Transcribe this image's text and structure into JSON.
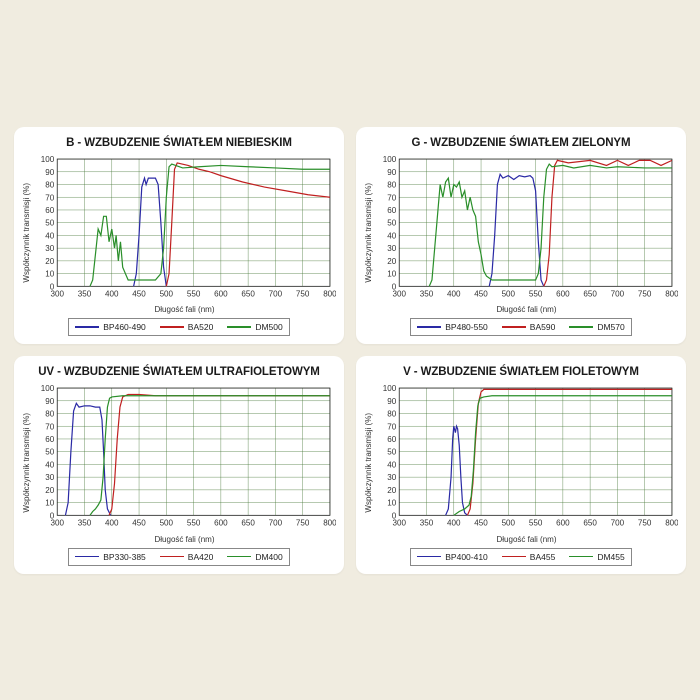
{
  "global": {
    "xlabel": "Długość fali (nm)",
    "ylabel": "Współczynnik transmisji (%)",
    "xlim": [
      300,
      800
    ],
    "xtick_step": 50,
    "ylim": [
      0,
      100
    ],
    "ytick_step": 10,
    "bg_color": "#f0ece0",
    "panel_bg": "#ffffff",
    "grid_color": "#4a7a3a",
    "grid_width": 0.4,
    "axis_color": "#222222",
    "title_fontsize": 11.5,
    "label_fontsize": 8,
    "tick_fontsize": 8,
    "legend_fontsize": 8.5,
    "line_width": 1.2,
    "series_colors": {
      "bp": "#2a2aa5",
      "ba": "#c02020",
      "dm": "#2a8f2a"
    }
  },
  "panels": [
    {
      "id": "B",
      "title": "B - WZBUDZENIE ŚWIATŁEM NIEBIESKIM",
      "series": [
        {
          "name": "BP460-490",
          "color_key": "bp",
          "points": [
            [
              440,
              0
            ],
            [
              445,
              10
            ],
            [
              450,
              40
            ],
            [
              455,
              78
            ],
            [
              460,
              85
            ],
            [
              463,
              80
            ],
            [
              467,
              85
            ],
            [
              475,
              85
            ],
            [
              480,
              85
            ],
            [
              485,
              80
            ],
            [
              490,
              50
            ],
            [
              495,
              15
            ],
            [
              500,
              0
            ]
          ]
        },
        {
          "name": "BA520",
          "color_key": "ba",
          "points": [
            [
              500,
              0
            ],
            [
              505,
              10
            ],
            [
              510,
              50
            ],
            [
              515,
              92
            ],
            [
              520,
              97
            ],
            [
              540,
              95
            ],
            [
              560,
              92
            ],
            [
              580,
              90
            ],
            [
              600,
              87
            ],
            [
              640,
              82
            ],
            [
              680,
              78
            ],
            [
              720,
              75
            ],
            [
              760,
              72
            ],
            [
              800,
              70
            ]
          ]
        },
        {
          "name": "DM500",
          "color_key": "dm",
          "points": [
            [
              360,
              0
            ],
            [
              365,
              5
            ],
            [
              370,
              25
            ],
            [
              375,
              45
            ],
            [
              380,
              40
            ],
            [
              385,
              55
            ],
            [
              390,
              55
            ],
            [
              395,
              35
            ],
            [
              400,
              45
            ],
            [
              405,
              30
            ],
            [
              408,
              40
            ],
            [
              412,
              20
            ],
            [
              416,
              35
            ],
            [
              420,
              15
            ],
            [
              425,
              10
            ],
            [
              430,
              5
            ],
            [
              440,
              5
            ],
            [
              455,
              5
            ],
            [
              470,
              5
            ],
            [
              480,
              5
            ],
            [
              490,
              10
            ],
            [
              495,
              30
            ],
            [
              500,
              70
            ],
            [
              505,
              94
            ],
            [
              510,
              96
            ],
            [
              530,
              93
            ],
            [
              560,
              94
            ],
            [
              600,
              95
            ],
            [
              650,
              94
            ],
            [
              700,
              93
            ],
            [
              750,
              92
            ],
            [
              800,
              92
            ]
          ]
        }
      ]
    },
    {
      "id": "G",
      "title": "G - WZBUDZENIE ŚWIATŁEM ZIELONYM",
      "series": [
        {
          "name": "BP480-550",
          "color_key": "bp",
          "points": [
            [
              465,
              0
            ],
            [
              470,
              10
            ],
            [
              475,
              40
            ],
            [
              480,
              80
            ],
            [
              485,
              88
            ],
            [
              490,
              85
            ],
            [
              500,
              87
            ],
            [
              510,
              84
            ],
            [
              520,
              87
            ],
            [
              530,
              86
            ],
            [
              540,
              87
            ],
            [
              545,
              85
            ],
            [
              550,
              75
            ],
            [
              555,
              35
            ],
            [
              560,
              5
            ],
            [
              565,
              0
            ]
          ]
        },
        {
          "name": "BA590",
          "color_key": "ba",
          "points": [
            [
              565,
              0
            ],
            [
              570,
              5
            ],
            [
              575,
              25
            ],
            [
              580,
              70
            ],
            [
              585,
              95
            ],
            [
              590,
              99
            ],
            [
              610,
              97
            ],
            [
              650,
              99
            ],
            [
              680,
              95
            ],
            [
              700,
              99
            ],
            [
              720,
              95
            ],
            [
              740,
              99
            ],
            [
              760,
              99
            ],
            [
              780,
              95
            ],
            [
              800,
              99
            ]
          ]
        },
        {
          "name": "DM570",
          "color_key": "dm",
          "points": [
            [
              355,
              0
            ],
            [
              360,
              5
            ],
            [
              365,
              30
            ],
            [
              370,
              55
            ],
            [
              375,
              80
            ],
            [
              380,
              70
            ],
            [
              385,
              82
            ],
            [
              390,
              85
            ],
            [
              395,
              70
            ],
            [
              400,
              80
            ],
            [
              405,
              78
            ],
            [
              410,
              82
            ],
            [
              415,
              70
            ],
            [
              420,
              75
            ],
            [
              425,
              60
            ],
            [
              430,
              70
            ],
            [
              435,
              60
            ],
            [
              440,
              55
            ],
            [
              445,
              35
            ],
            [
              450,
              25
            ],
            [
              455,
              12
            ],
            [
              460,
              8
            ],
            [
              470,
              5
            ],
            [
              490,
              5
            ],
            [
              520,
              5
            ],
            [
              550,
              5
            ],
            [
              555,
              10
            ],
            [
              560,
              30
            ],
            [
              565,
              70
            ],
            [
              570,
              92
            ],
            [
              575,
              96
            ],
            [
              580,
              94
            ],
            [
              600,
              95
            ],
            [
              620,
              93
            ],
            [
              650,
              95
            ],
            [
              680,
              93
            ],
            [
              700,
              94
            ],
            [
              750,
              93
            ],
            [
              800,
              93
            ]
          ]
        }
      ]
    },
    {
      "id": "UV",
      "title": "UV - WZBUDZENIE ŚWIATŁEM ULTRAFIOLETOWYM",
      "series": [
        {
          "name": "BP330-385",
          "color_key": "bp",
          "points": [
            [
              315,
              0
            ],
            [
              320,
              10
            ],
            [
              325,
              50
            ],
            [
              330,
              82
            ],
            [
              335,
              88
            ],
            [
              340,
              85
            ],
            [
              350,
              86
            ],
            [
              360,
              86
            ],
            [
              370,
              85
            ],
            [
              378,
              85
            ],
            [
              382,
              75
            ],
            [
              385,
              50
            ],
            [
              388,
              20
            ],
            [
              392,
              5
            ],
            [
              398,
              0
            ]
          ]
        },
        {
          "name": "BA420",
          "color_key": "ba",
          "points": [
            [
              395,
              0
            ],
            [
              400,
              5
            ],
            [
              405,
              25
            ],
            [
              410,
              60
            ],
            [
              415,
              85
            ],
            [
              420,
              93
            ],
            [
              430,
              95
            ],
            [
              450,
              95
            ],
            [
              480,
              94
            ],
            [
              520,
              94
            ],
            [
              560,
              94
            ],
            [
              600,
              94
            ],
            [
              650,
              94
            ],
            [
              700,
              94
            ],
            [
              750,
              94
            ],
            [
              800,
              94
            ]
          ]
        },
        {
          "name": "DM400",
          "color_key": "dm",
          "points": [
            [
              360,
              0
            ],
            [
              365,
              3
            ],
            [
              370,
              5
            ],
            [
              375,
              8
            ],
            [
              380,
              12
            ],
            [
              384,
              30
            ],
            [
              388,
              60
            ],
            [
              392,
              85
            ],
            [
              396,
              92
            ],
            [
              400,
              93
            ],
            [
              420,
              94
            ],
            [
              450,
              94
            ],
            [
              500,
              94
            ],
            [
              550,
              94
            ],
            [
              600,
              94
            ],
            [
              650,
              94
            ],
            [
              700,
              94
            ],
            [
              750,
              94
            ],
            [
              800,
              94
            ]
          ]
        }
      ]
    },
    {
      "id": "V",
      "title": "V - WZBUDZENIE ŚWIATŁEM FIOLETOWYM",
      "series": [
        {
          "name": "BP400-410",
          "color_key": "bp",
          "points": [
            [
              385,
              0
            ],
            [
              390,
              5
            ],
            [
              395,
              30
            ],
            [
              398,
              60
            ],
            [
              400,
              70
            ],
            [
              403,
              65
            ],
            [
              405,
              70
            ],
            [
              407,
              68
            ],
            [
              410,
              55
            ],
            [
              413,
              30
            ],
            [
              416,
              10
            ],
            [
              420,
              2
            ],
            [
              425,
              0
            ]
          ]
        },
        {
          "name": "BA455",
          "color_key": "ba",
          "points": [
            [
              425,
              0
            ],
            [
              430,
              5
            ],
            [
              435,
              25
            ],
            [
              440,
              60
            ],
            [
              445,
              88
            ],
            [
              450,
              97
            ],
            [
              455,
              99
            ],
            [
              470,
              99
            ],
            [
              500,
              99
            ],
            [
              540,
              99
            ],
            [
              580,
              99
            ],
            [
              620,
              99
            ],
            [
              660,
              99
            ],
            [
              700,
              99
            ],
            [
              740,
              99
            ],
            [
              780,
              99
            ],
            [
              800,
              99
            ]
          ]
        },
        {
          "name": "DM455",
          "color_key": "dm",
          "points": [
            [
              400,
              0
            ],
            [
              410,
              3
            ],
            [
              420,
              5
            ],
            [
              428,
              8
            ],
            [
              432,
              15
            ],
            [
              436,
              35
            ],
            [
              440,
              65
            ],
            [
              444,
              86
            ],
            [
              448,
              92
            ],
            [
              455,
              93
            ],
            [
              470,
              94
            ],
            [
              500,
              94
            ],
            [
              540,
              94
            ],
            [
              580,
              94
            ],
            [
              620,
              94
            ],
            [
              660,
              94
            ],
            [
              700,
              94
            ],
            [
              740,
              94
            ],
            [
              780,
              94
            ],
            [
              800,
              94
            ]
          ]
        }
      ]
    }
  ]
}
